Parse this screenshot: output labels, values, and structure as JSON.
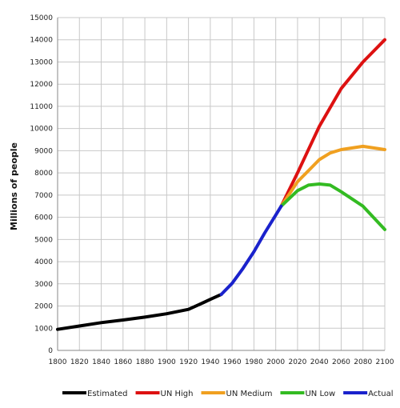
{
  "chart_data": {
    "type": "line",
    "ylabel": "Millions of people",
    "xlim": [
      1800,
      2100
    ],
    "ylim": [
      0,
      15000
    ],
    "x_ticks": [
      1800,
      1820,
      1840,
      1860,
      1880,
      1900,
      1920,
      1940,
      1960,
      1980,
      2000,
      2020,
      2040,
      2060,
      2080,
      2100
    ],
    "y_ticks": [
      0,
      1000,
      2000,
      3000,
      4000,
      5000,
      6000,
      7000,
      8000,
      9000,
      10000,
      11000,
      12000,
      13000,
      14000,
      15000
    ],
    "x_tick_labels": [
      "1800",
      "1820",
      "1840",
      "1860",
      "1880",
      "1900",
      "1920",
      "1940",
      "1960",
      "1980",
      "2000",
      "2020",
      "2040",
      "2060",
      "2080",
      "2100"
    ],
    "y_tick_labels": [
      "0",
      "1000",
      "2000",
      "3000",
      "4000",
      "5000",
      "6000",
      "7000",
      "8000",
      "9000",
      "10000",
      "11000",
      "12000",
      "13000",
      "14000",
      "15000"
    ],
    "grid": true,
    "legend_position": "bottom",
    "series": [
      {
        "name": "Estimated",
        "color": "#000000",
        "x": [
          1800,
          1820,
          1840,
          1860,
          1880,
          1900,
          1920,
          1930,
          1940,
          1950
        ],
        "y": [
          950,
          1100,
          1250,
          1370,
          1500,
          1650,
          1850,
          2070,
          2300,
          2520
        ]
      },
      {
        "name": "UN High",
        "color": "#dd1111",
        "x": [
          2005,
          2020,
          2040,
          2060,
          2080,
          2100
        ],
        "y": [
          6500,
          8000,
          10100,
          11800,
          13000,
          14000
        ]
      },
      {
        "name": "UN Medium",
        "color": "#f0a020",
        "x": [
          2005,
          2020,
          2040,
          2050,
          2060,
          2080,
          2100
        ],
        "y": [
          6500,
          7600,
          8600,
          8900,
          9050,
          9200,
          9050
        ]
      },
      {
        "name": "UN Low",
        "color": "#33bb22",
        "x": [
          2005,
          2020,
          2030,
          2040,
          2050,
          2060,
          2080,
          2100
        ],
        "y": [
          6500,
          7200,
          7450,
          7500,
          7450,
          7150,
          6500,
          5450
        ]
      },
      {
        "name": "Actual",
        "color": "#1a22cc",
        "x": [
          1950,
          1960,
          1970,
          1980,
          1990,
          2000,
          2005
        ],
        "y": [
          2520,
          3020,
          3700,
          4450,
          5300,
          6100,
          6500
        ]
      }
    ]
  }
}
